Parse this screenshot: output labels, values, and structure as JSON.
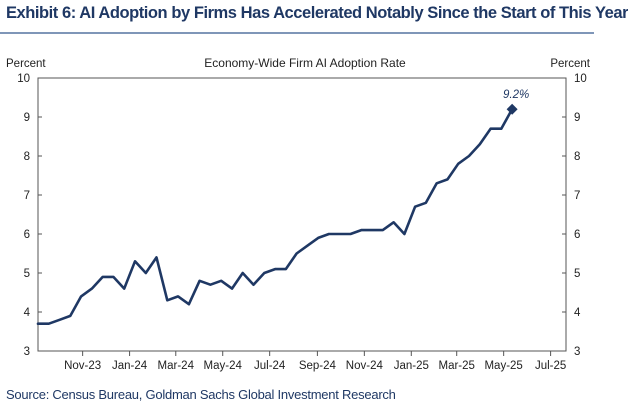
{
  "header": {
    "title": "Exhibit 6: AI Adoption by Firms Has Accelerated Notably Since the Start of This Year"
  },
  "footer": {
    "source": "Source: Census Bureau, Goldman Sachs Global Investment Research"
  },
  "chart_data": {
    "type": "line",
    "title": "Economy-Wide Firm AI Adoption Rate",
    "ylabel_left": "Percent",
    "ylabel_right": "Percent",
    "ylim": [
      3,
      10
    ],
    "yticks": [
      3,
      4,
      5,
      6,
      7,
      8,
      9,
      10
    ],
    "xlim": [
      "2023-09-04",
      "2025-07-21"
    ],
    "xticks": [
      {
        "label": "Nov-23",
        "date": "2023-11-01"
      },
      {
        "label": "Jan-24",
        "date": "2024-01-01"
      },
      {
        "label": "Mar-24",
        "date": "2024-03-01"
      },
      {
        "label": "May-24",
        "date": "2024-05-01"
      },
      {
        "label": "Jul-24",
        "date": "2024-07-01"
      },
      {
        "label": "Sep-24",
        "date": "2024-09-01"
      },
      {
        "label": "Nov-24",
        "date": "2024-11-01"
      },
      {
        "label": "Jan-25",
        "date": "2025-01-01"
      },
      {
        "label": "Mar-25",
        "date": "2025-03-01"
      },
      {
        "label": "May-25",
        "date": "2025-05-01"
      },
      {
        "label": "Jul-25",
        "date": "2025-07-01"
      }
    ],
    "grid": false,
    "legend": "none",
    "color": "#1f3864",
    "series": [
      {
        "marker_last": "diamond",
        "last_label": "9.2%",
        "points": [
          {
            "x": "2023-09-04",
            "y": 3.7
          },
          {
            "x": "2023-09-18",
            "y": 3.7
          },
          {
            "x": "2023-10-02",
            "y": 3.8
          },
          {
            "x": "2023-10-16",
            "y": 3.9
          },
          {
            "x": "2023-10-30",
            "y": 4.4
          },
          {
            "x": "2023-11-13",
            "y": 4.6
          },
          {
            "x": "2023-11-27",
            "y": 4.9
          },
          {
            "x": "2023-12-11",
            "y": 4.9
          },
          {
            "x": "2023-12-25",
            "y": 4.6
          },
          {
            "x": "2024-01-08",
            "y": 5.3
          },
          {
            "x": "2024-01-22",
            "y": 5.0
          },
          {
            "x": "2024-02-05",
            "y": 5.4
          },
          {
            "x": "2024-02-19",
            "y": 4.3
          },
          {
            "x": "2024-03-04",
            "y": 4.4
          },
          {
            "x": "2024-03-18",
            "y": 4.2
          },
          {
            "x": "2024-04-01",
            "y": 4.8
          },
          {
            "x": "2024-04-15",
            "y": 4.7
          },
          {
            "x": "2024-04-29",
            "y": 4.8
          },
          {
            "x": "2024-05-13",
            "y": 4.6
          },
          {
            "x": "2024-05-27",
            "y": 5.0
          },
          {
            "x": "2024-06-10",
            "y": 4.7
          },
          {
            "x": "2024-06-24",
            "y": 5.0
          },
          {
            "x": "2024-07-08",
            "y": 5.1
          },
          {
            "x": "2024-07-22",
            "y": 5.1
          },
          {
            "x": "2024-08-05",
            "y": 5.5
          },
          {
            "x": "2024-08-19",
            "y": 5.7
          },
          {
            "x": "2024-09-02",
            "y": 5.9
          },
          {
            "x": "2024-09-16",
            "y": 6.0
          },
          {
            "x": "2024-09-30",
            "y": 6.0
          },
          {
            "x": "2024-10-14",
            "y": 6.0
          },
          {
            "x": "2024-10-28",
            "y": 6.1
          },
          {
            "x": "2024-11-11",
            "y": 6.1
          },
          {
            "x": "2024-11-25",
            "y": 6.1
          },
          {
            "x": "2024-12-09",
            "y": 6.3
          },
          {
            "x": "2024-12-23",
            "y": 6.0
          },
          {
            "x": "2025-01-06",
            "y": 6.7
          },
          {
            "x": "2025-01-20",
            "y": 6.8
          },
          {
            "x": "2025-02-03",
            "y": 7.3
          },
          {
            "x": "2025-02-17",
            "y": 7.4
          },
          {
            "x": "2025-03-03",
            "y": 7.8
          },
          {
            "x": "2025-03-17",
            "y": 8.0
          },
          {
            "x": "2025-03-31",
            "y": 8.3
          },
          {
            "x": "2025-04-14",
            "y": 8.7
          },
          {
            "x": "2025-04-28",
            "y": 8.7
          },
          {
            "x": "2025-05-12",
            "y": 9.2
          }
        ]
      }
    ]
  }
}
